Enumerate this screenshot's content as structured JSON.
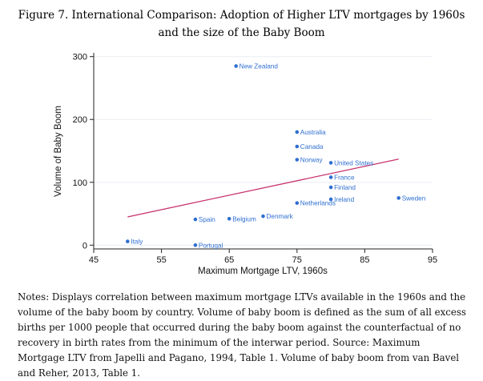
{
  "figure": {
    "caption": "Figure 7. International Comparison: Adoption of Higher LTV mortgages by 1960s and the size of the Baby Boom",
    "notes": "Notes: Displays correlation between maximum mortgage LTVs available in the 1960s and the volume of the baby boom by country. Volume of baby boom is defined as the sum of all excess births per 1000 people that occurred during the baby boom against the counterfactual of no recovery in birth rates from the minimum of the interwar period. Source: Maximum Mortgage LTV from Japelli and Pagano, 1994, Table 1. Volume of baby boom from van Bavel and Reher, 2013, Table 1."
  },
  "colors": {
    "points": "#2f6fd0",
    "fit_line": "#c8326e",
    "grid": "#e9eef4",
    "axis": "#222222"
  },
  "chart_data": {
    "type": "scatter",
    "title": "",
    "xlabel": "Maximum Mortgage LTV, 1960s",
    "ylabel": "Volume of Baby Boom",
    "xlim": [
      45,
      95
    ],
    "ylim": [
      -6,
      306
    ],
    "xticks": [
      45,
      55,
      65,
      75,
      85,
      95
    ],
    "yticks": [
      0,
      100,
      200,
      300
    ],
    "grid": true,
    "points": [
      {
        "label": "New Zealand",
        "x": 66,
        "y": 285
      },
      {
        "label": "Australia",
        "x": 75,
        "y": 180
      },
      {
        "label": "Canada",
        "x": 75,
        "y": 157
      },
      {
        "label": "Norway",
        "x": 75,
        "y": 136
      },
      {
        "label": "United States",
        "x": 80,
        "y": 131
      },
      {
        "label": "France",
        "x": 80,
        "y": 108
      },
      {
        "label": "Finland",
        "x": 80,
        "y": 92
      },
      {
        "label": "Sweden",
        "x": 90,
        "y": 75
      },
      {
        "label": "Ireland",
        "x": 80,
        "y": 73
      },
      {
        "label": "Netherlands",
        "x": 75,
        "y": 67
      },
      {
        "label": "Denmark",
        "x": 70,
        "y": 46
      },
      {
        "label": "Belgium",
        "x": 65,
        "y": 42
      },
      {
        "label": "Spain",
        "x": 60,
        "y": 41
      },
      {
        "label": "Italy",
        "x": 50,
        "y": 6
      },
      {
        "label": "Portugal",
        "x": 60,
        "y": 0
      }
    ],
    "fit_line": {
      "x": [
        50,
        90
      ],
      "y": [
        45,
        137
      ]
    }
  }
}
